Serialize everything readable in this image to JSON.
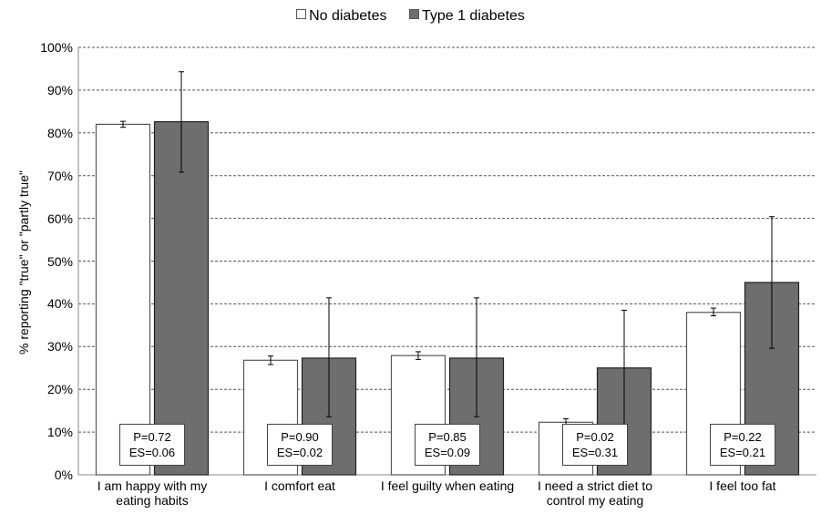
{
  "chart_data": {
    "type": "bar",
    "legend_placement": "top-center",
    "grid": true,
    "ylabel": "% reporting \"true\" or \"partly true\"",
    "ylim": [
      0,
      100
    ],
    "yticks": [
      "0%",
      "10%",
      "20%",
      "30%",
      "40%",
      "50%",
      "60%",
      "70%",
      "80%",
      "90%",
      "100%"
    ],
    "categories": [
      "I am happy with my eating habits",
      "I comfort eat",
      "I feel guilty when eating",
      "I need a strict diet to control my eating",
      "I feel too fat"
    ],
    "series": [
      {
        "name": "No diabetes",
        "color": "#ffffff",
        "values": [
          82,
          26.8,
          27.9,
          12.3,
          38
        ],
        "error_low": [
          81.3,
          25.8,
          27.0,
          11.6,
          37.2
        ],
        "error_high": [
          82.7,
          27.8,
          28.8,
          13.1,
          39.0
        ]
      },
      {
        "name": "Type 1 diabetes",
        "color": "#7f7f7f",
        "values": [
          82.6,
          27.3,
          27.3,
          25,
          45
        ],
        "error_low": [
          70.8,
          13.6,
          13.6,
          11.5,
          29.6
        ],
        "error_high": [
          94.3,
          41.4,
          41.4,
          38.5,
          60.4
        ]
      }
    ],
    "annotations": [
      {
        "p": "P=0.72",
        "es": "ES=0.06"
      },
      {
        "p": "P=0.90",
        "es": "ES=0.02"
      },
      {
        "p": "P=0.85",
        "es": "ES=0.09"
      },
      {
        "p": "P=0.02",
        "es": "ES=0.31"
      },
      {
        "p": "P=0.22",
        "es": "ES=0.21"
      }
    ]
  },
  "legend": {
    "items": [
      {
        "label": "No diabetes",
        "color": "#ffffff"
      },
      {
        "label": "Type 1 diabetes",
        "color": "#6e6e6e"
      }
    ]
  }
}
